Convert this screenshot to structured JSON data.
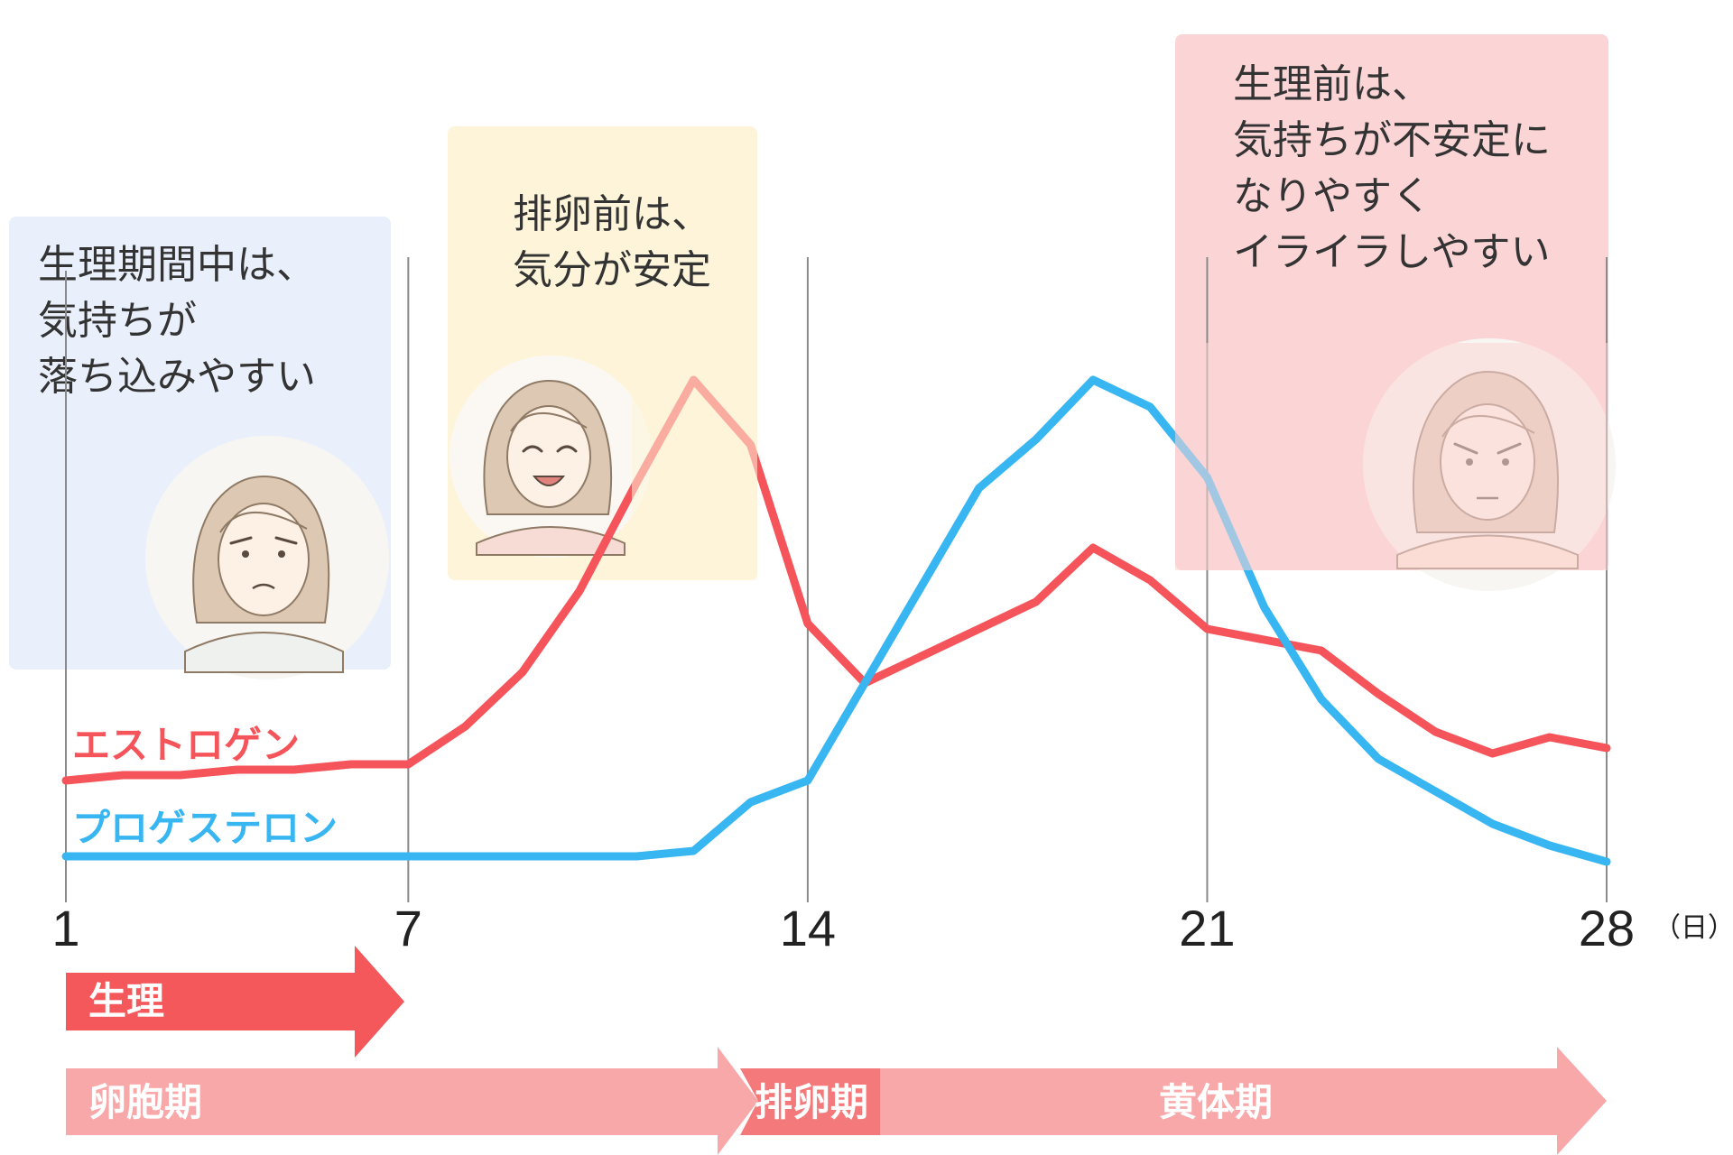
{
  "chart_data": {
    "type": "line",
    "x": [
      1,
      2,
      3,
      4,
      5,
      6,
      7,
      8,
      9,
      10,
      11,
      12,
      13,
      14,
      15,
      16,
      17,
      18,
      19,
      20,
      21,
      22,
      23,
      24,
      25,
      26,
      27,
      28
    ],
    "xticks": [
      1,
      7,
      14,
      21,
      28
    ],
    "xlim": [
      1,
      28
    ],
    "x_unit": "（日）",
    "series": [
      {
        "name": "エストロゲン",
        "color": "#f4545a",
        "values": [
          0.2,
          0.21,
          0.21,
          0.22,
          0.22,
          0.23,
          0.23,
          0.3,
          0.4,
          0.55,
          0.75,
          0.94,
          0.82,
          0.49,
          0.38,
          0.43,
          0.48,
          0.53,
          0.63,
          0.57,
          0.48,
          0.46,
          0.44,
          0.36,
          0.29,
          0.25,
          0.28,
          0.26
        ]
      },
      {
        "name": "プロゲステロン",
        "color": "#37b6f2",
        "values": [
          0.06,
          0.06,
          0.06,
          0.06,
          0.06,
          0.06,
          0.06,
          0.06,
          0.06,
          0.06,
          0.06,
          0.07,
          0.16,
          0.2,
          0.38,
          0.56,
          0.74,
          0.83,
          0.94,
          0.89,
          0.76,
          0.52,
          0.35,
          0.24,
          0.18,
          0.12,
          0.08,
          0.05
        ]
      }
    ],
    "annotations": [
      {
        "lines": [
          "生理期間中は、",
          "気持ちが",
          "落ち込みやすい"
        ],
        "color": "#e9f0fc"
      },
      {
        "lines": [
          "排卵前は、",
          "気分が安定"
        ],
        "color": "#fdf4d9"
      },
      {
        "lines": [
          "生理前は、",
          "気持ちが不安定に",
          "なりやすく",
          "イライラしやすい"
        ],
        "color": "#fbd5d6"
      }
    ],
    "phases": [
      {
        "label": "生理",
        "color": "#f4585b"
      },
      {
        "label": "卵胞期",
        "color": "#f9a8a9"
      },
      {
        "label": "排卵期",
        "color": "#f4797b"
      },
      {
        "label": "黄体期",
        "color": "#f9a8a9"
      }
    ]
  }
}
